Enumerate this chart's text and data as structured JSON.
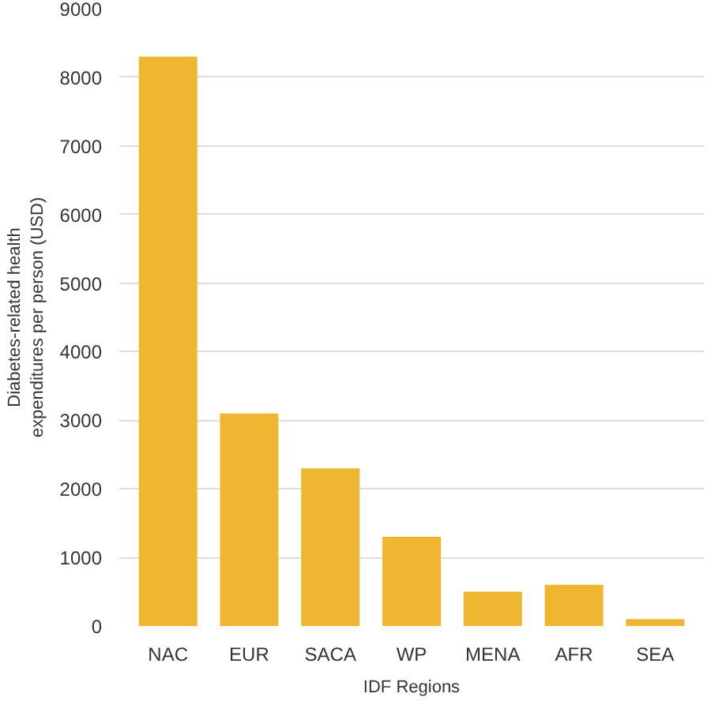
{
  "chart_data": {
    "type": "bar",
    "xlabel": "IDF Regions",
    "ylabel": "Diabetes-related health\nexpenditures per person (USD)",
    "categories": [
      "NAC",
      "EUR",
      "SACA",
      "WP",
      "MENA",
      "AFR",
      "SEA"
    ],
    "values": [
      8300,
      3100,
      2300,
      1300,
      500,
      600,
      100
    ],
    "color": "#efb731",
    "ylim": [
      0,
      9000
    ],
    "yticks": [
      0,
      1000,
      2000,
      3000,
      4000,
      5000,
      6000,
      7000,
      8000,
      9000
    ],
    "grid": "y"
  }
}
